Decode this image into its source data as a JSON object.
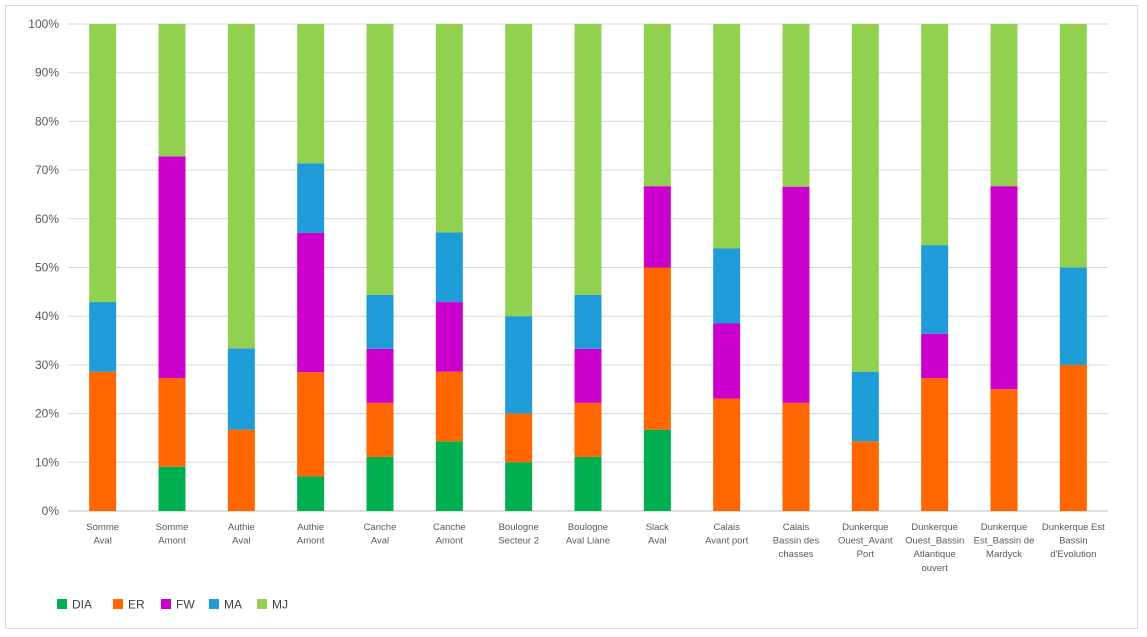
{
  "chart_data": {
    "type": "bar",
    "stacked": "percent",
    "ylim": [
      0,
      100
    ],
    "y_tick_labels": [
      "0%",
      "10%",
      "20%",
      "30%",
      "40%",
      "50%",
      "60%",
      "70%",
      "80%",
      "90%",
      "100%"
    ],
    "grid": true,
    "legend_position": "bottom-left",
    "categories": [
      [
        "Somme",
        "Aval"
      ],
      [
        "Somme",
        "Amont"
      ],
      [
        "Authie",
        "Aval"
      ],
      [
        "Authie",
        "Amont"
      ],
      [
        "Canche",
        "Aval"
      ],
      [
        "Canche",
        "Amont"
      ],
      [
        "Boulogne",
        "Secteur 2"
      ],
      [
        "Boulogne",
        "Aval Liane"
      ],
      [
        "Slack",
        "Aval"
      ],
      [
        "Calais",
        "Avant port"
      ],
      [
        "Calais",
        "Bassin des",
        "chasses"
      ],
      [
        "Dunkerque",
        "Ouest_Avant",
        "Port"
      ],
      [
        "Dunkerque",
        "Ouest_Bassin",
        "Atlantique",
        "ouvert"
      ],
      [
        "Dunkerque",
        "Est_Bassin de",
        "Mardyck"
      ],
      [
        "Dunkerque Est",
        "Bassin",
        "d'Evolution"
      ]
    ],
    "series": [
      {
        "name": "DIA",
        "color": "#00b050",
        "values": [
          0,
          9.1,
          0,
          7.1,
          11.1,
          14.3,
          10,
          11.1,
          16.7,
          0,
          0,
          0,
          0,
          0,
          0
        ]
      },
      {
        "name": "ER",
        "color": "#ff6600",
        "values": [
          28.6,
          18.2,
          16.7,
          21.4,
          11.1,
          14.3,
          10,
          11.1,
          33.3,
          23.1,
          22.2,
          14.3,
          27.3,
          25,
          30
        ]
      },
      {
        "name": "FW",
        "color": "#cc00cc",
        "values": [
          0,
          45.5,
          0,
          28.6,
          11.1,
          14.3,
          0,
          11.1,
          16.7,
          15.4,
          44.4,
          0,
          9.1,
          41.7,
          0
        ]
      },
      {
        "name": "MA",
        "color": "#1f9bd7",
        "values": [
          14.3,
          0,
          16.7,
          14.3,
          11.1,
          14.3,
          20,
          11.1,
          0,
          15.4,
          0,
          14.3,
          18.2,
          0,
          20
        ]
      },
      {
        "name": "MJ",
        "color": "#92d050",
        "values": [
          57.1,
          27.2,
          66.6,
          28.6,
          55.6,
          42.8,
          60,
          55.6,
          33.3,
          46.1,
          33.4,
          71.4,
          45.4,
          33.3,
          50
        ]
      }
    ]
  }
}
